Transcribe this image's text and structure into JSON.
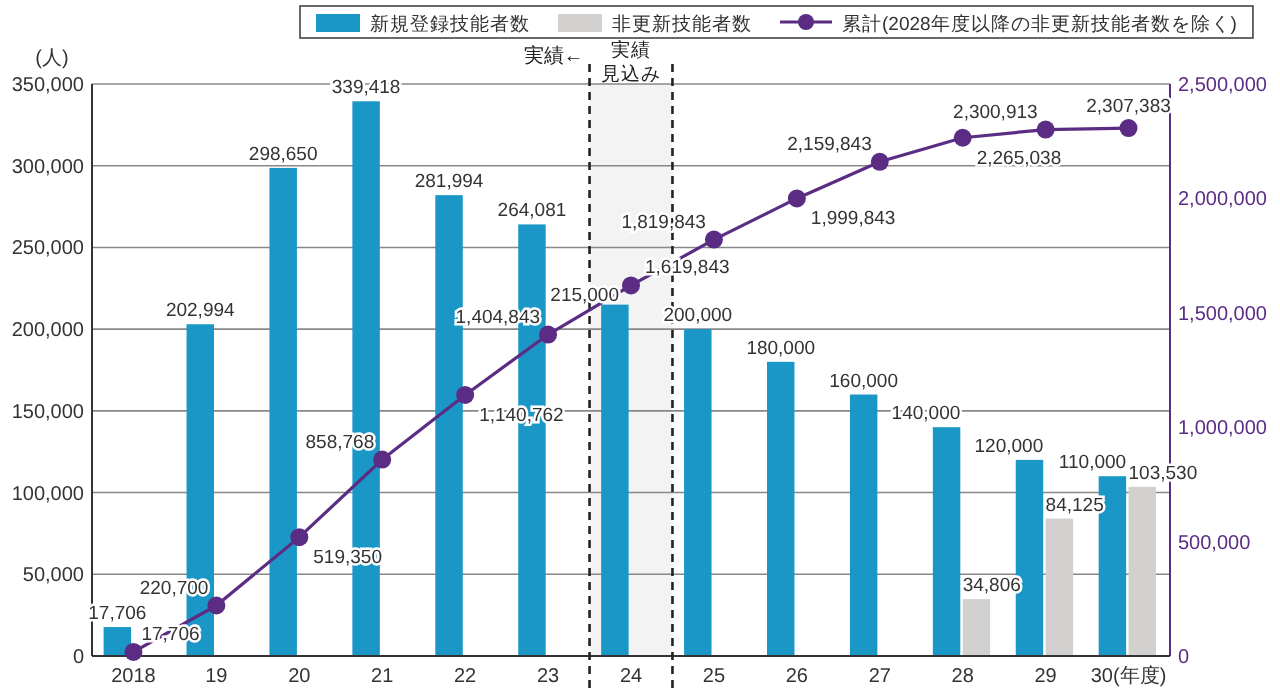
{
  "chart_data": {
    "type": "bar",
    "categories": [
      "2018",
      "19",
      "20",
      "21",
      "22",
      "23",
      "24",
      "25",
      "26",
      "27",
      "28",
      "29",
      "30(年度)"
    ],
    "ylabel": "(人)",
    "series": [
      {
        "name": "新規登録技能者数",
        "color": "#1a97c6",
        "values": [
          17706,
          202994,
          298650,
          339418,
          281994,
          264081,
          215000,
          200000,
          180000,
          160000,
          140000,
          120000,
          110000
        ],
        "value_labels": [
          "17,706",
          "202,994",
          "298,650",
          "339,418",
          "281,994",
          "264,081",
          "215,000",
          "200,000",
          "180,000",
          "160,000",
          "140,000",
          "120,000",
          "110,000"
        ]
      },
      {
        "name": "非更新技能者数",
        "color": "#d3d1cf",
        "values": [
          null,
          null,
          null,
          null,
          null,
          null,
          null,
          null,
          null,
          null,
          34806,
          84125,
          103530
        ],
        "value_labels": [
          null,
          null,
          null,
          null,
          null,
          null,
          null,
          null,
          null,
          null,
          "34,806",
          "84,125",
          "103,530"
        ]
      },
      {
        "name": "累計(2028年度以降の非更新技能者数を除く)",
        "type": "line",
        "axis": "y2",
        "color": "#5b2c83",
        "marker": "circle",
        "values": [
          17706,
          220700,
          519350,
          858768,
          1140762,
          1404843,
          1619843,
          1819843,
          1999843,
          2159843,
          2265038,
          2300913,
          2307383
        ],
        "value_labels": [
          "17,706",
          "220,700",
          "519,350",
          "858,768",
          "1,140,762",
          "1,404,843",
          "1,619,843",
          "1,819,843",
          "1,999,843",
          "2,159,843",
          "2,265,038",
          "2,300,913",
          "2,307,383"
        ]
      }
    ],
    "ylim": [
      0,
      350000
    ],
    "yticks": [
      {
        "value": 0,
        "label": "0"
      },
      {
        "value": 50000,
        "label": "50,000"
      },
      {
        "value": 100000,
        "label": "100,000"
      },
      {
        "value": 150000,
        "label": "150,000"
      },
      {
        "value": 200000,
        "label": "200,000"
      },
      {
        "value": 250000,
        "label": "250,000"
      },
      {
        "value": 300000,
        "label": "300,000"
      },
      {
        "value": 350000,
        "label": "350,000"
      }
    ],
    "y2lim": [
      0,
      2500000
    ],
    "y2ticks": [
      {
        "value": 0,
        "label": "0"
      },
      {
        "value": 500000,
        "label": "500,000"
      },
      {
        "value": 1000000,
        "label": "1,000,000"
      },
      {
        "value": 1500000,
        "label": "1,500,000"
      },
      {
        "value": 2000000,
        "label": "2,000,000"
      },
      {
        "value": 2500000,
        "label": "2,500,000"
      }
    ],
    "bands": [
      {
        "axis": "x",
        "from": "24",
        "to": "24",
        "label": "実績見込み",
        "color": "#f3f3f3"
      }
    ],
    "annotations": [
      "実績←"
    ],
    "grid": "y",
    "legend": "top"
  }
}
